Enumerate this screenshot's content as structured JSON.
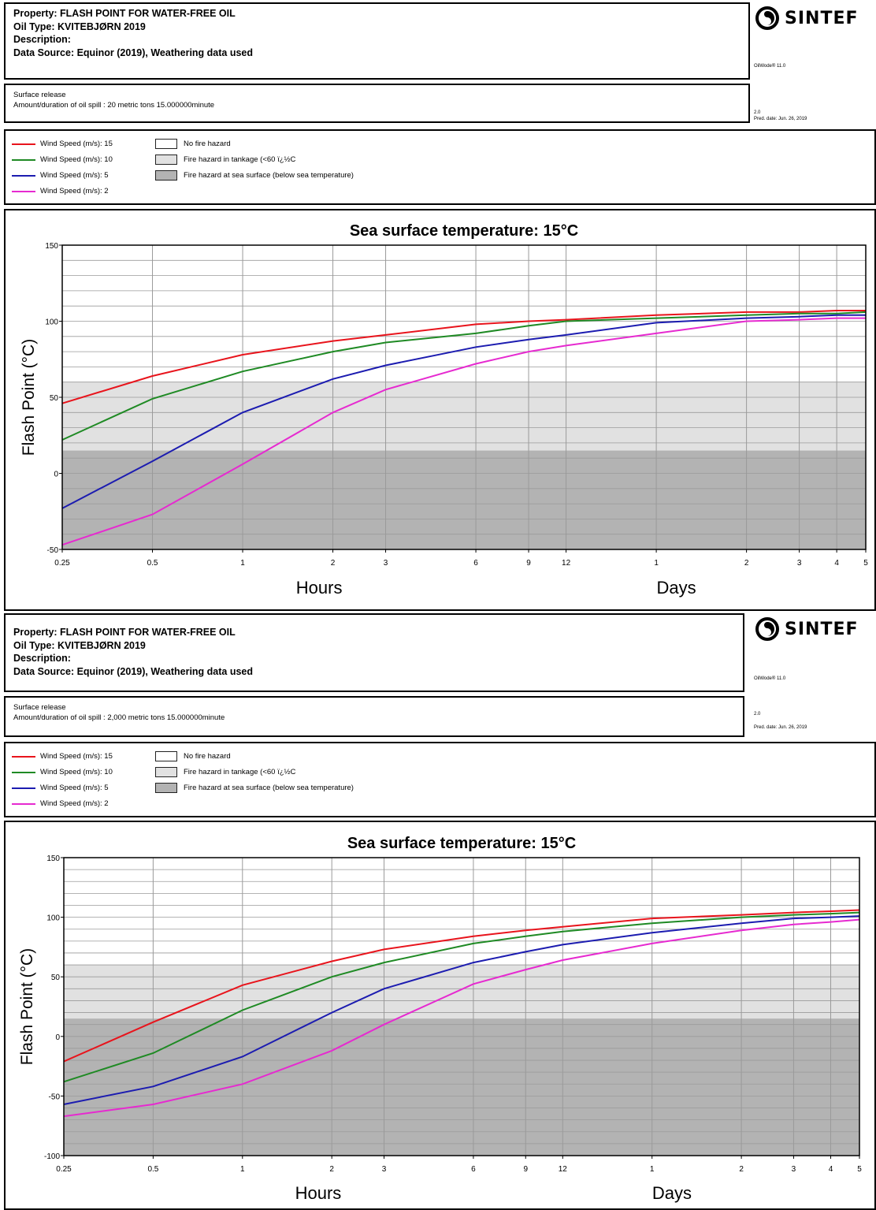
{
  "panels": [
    {
      "header": {
        "property": "Property: FLASH POINT FOR WATER-FREE OIL",
        "oil_type": "Oil Type: KVITEBJØRN 2019",
        "description": "Description:",
        "data_source": "Data Source: Equinor (2019), Weathering data used"
      },
      "logo_text": "SINTEF",
      "version_text": "OilWode® 11.0",
      "release": {
        "line1": "Surface release",
        "line2": "Amount/duration of oil spill : 20 metric tons 15.000000minute"
      },
      "side_value": "2.0",
      "pred_date": "Pred. date: Jun. 26, 2019",
      "legend": {
        "series": [
          "Wind Speed (m/s): 15",
          "Wind Speed (m/s): 10",
          "Wind Speed (m/s): 5",
          "Wind Speed (m/s): 2"
        ],
        "zones": [
          "No fire hazard",
          "Fire hazard in tankage (<60 ï¿½C",
          "Fire hazard at sea surface (below sea temperature)"
        ]
      }
    },
    {
      "header": {
        "property": "Property: FLASH POINT FOR WATER-FREE OIL",
        "oil_type": "Oil Type: KVITEBJØRN 2019",
        "description": "Description:",
        "data_source": "Data Source: Equinor (2019), Weathering data used"
      },
      "logo_text": "SINTEF",
      "version_text": "OilWode® 11.0",
      "release": {
        "line1": "Surface release",
        "line2": "Amount/duration of oil spill : 2,000 metric tons 15.000000minute"
      },
      "side_value": "2.0",
      "pred_date": "Pred. date: Jun. 26, 2019",
      "legend": {
        "series": [
          "Wind Speed (m/s): 15",
          "Wind Speed (m/s): 10",
          "Wind Speed (m/s): 5",
          "Wind Speed (m/s): 2"
        ],
        "zones": [
          "No fire hazard",
          "Fire hazard in tankage (<60 ï¿½C",
          "Fire hazard at sea surface (below sea temperature)"
        ]
      }
    }
  ],
  "colors": {
    "ws15": "#e8141c",
    "ws10": "#1f8a24",
    "ws5": "#1c1cb0",
    "ws2": "#e62ad0",
    "tank_zone": "#e1e1e1",
    "sea_zone": "#b3b3b3",
    "grid": "#9a9a9a"
  },
  "chart_data": [
    {
      "type": "line",
      "title": "Sea surface temperature: 15°C",
      "ylabel": "Flash Point (°C)",
      "xlabel_hours": "Hours",
      "xlabel_days": "Days",
      "x_scale": "log (hours)",
      "x_tick_hours": [
        0.25,
        0.5,
        1,
        2,
        3,
        6,
        9,
        12,
        24,
        48,
        72,
        96,
        120
      ],
      "x_tick_labels": [
        "0.25",
        "0.5",
        "1",
        "2",
        "3",
        "6",
        "9",
        "12",
        "1",
        "2",
        "3",
        "4",
        "5"
      ],
      "ylim": [
        -50,
        150
      ],
      "y_ticks": [
        -50,
        0,
        50,
        100,
        150
      ],
      "zones": {
        "sea_surface_below": 15,
        "tankage_below": 60
      },
      "x_hours": [
        0.25,
        0.5,
        1,
        2,
        3,
        6,
        9,
        12,
        24,
        48,
        72,
        96,
        120
      ],
      "series": [
        {
          "name": "Wind Speed (m/s): 15",
          "values": [
            46,
            64,
            78,
            87,
            91,
            98,
            100,
            101,
            104,
            106,
            106,
            107,
            107
          ]
        },
        {
          "name": "Wind Speed (m/s): 10",
          "values": [
            22,
            49,
            67,
            80,
            86,
            92,
            97,
            100,
            102,
            104,
            105,
            105,
            106
          ]
        },
        {
          "name": "Wind Speed (m/s): 5",
          "values": [
            -23,
            8,
            40,
            62,
            71,
            83,
            88,
            91,
            99,
            102,
            103,
            104,
            104
          ]
        },
        {
          "name": "Wind Speed (m/s): 2",
          "values": [
            -47,
            -27,
            6,
            40,
            55,
            72,
            80,
            84,
            92,
            100,
            101,
            102,
            102
          ]
        }
      ]
    },
    {
      "type": "line",
      "title": "Sea surface temperature: 15°C",
      "ylabel": "Flash Point (°C)",
      "xlabel_hours": "Hours",
      "xlabel_days": "Days",
      "x_scale": "log (hours)",
      "x_tick_hours": [
        0.25,
        0.5,
        1,
        2,
        3,
        6,
        9,
        12,
        24,
        48,
        72,
        96,
        120
      ],
      "x_tick_labels": [
        "0.25",
        "0.5",
        "1",
        "2",
        "3",
        "6",
        "9",
        "12",
        "1",
        "2",
        "3",
        "4",
        "5"
      ],
      "ylim": [
        -100,
        150
      ],
      "y_ticks": [
        -100,
        -50,
        0,
        50,
        100,
        150
      ],
      "zones": {
        "sea_surface_below": 15,
        "tankage_below": 60
      },
      "x_hours": [
        0.25,
        0.5,
        1,
        2,
        3,
        6,
        9,
        12,
        24,
        48,
        72,
        96,
        120
      ],
      "series": [
        {
          "name": "Wind Speed (m/s): 15",
          "values": [
            -21,
            12,
            43,
            63,
            73,
            84,
            89,
            92,
            99,
            102,
            104,
            105,
            106
          ]
        },
        {
          "name": "Wind Speed (m/s): 10",
          "values": [
            -38,
            -14,
            22,
            50,
            62,
            78,
            84,
            88,
            95,
            100,
            102,
            103,
            104
          ]
        },
        {
          "name": "Wind Speed (m/s): 5",
          "values": [
            -57,
            -42,
            -17,
            20,
            40,
            62,
            71,
            77,
            87,
            95,
            99,
            100,
            101
          ]
        },
        {
          "name": "Wind Speed (m/s): 2",
          "values": [
            -67,
            -57,
            -40,
            -12,
            10,
            44,
            56,
            64,
            78,
            89,
            94,
            96,
            98
          ]
        }
      ]
    }
  ]
}
